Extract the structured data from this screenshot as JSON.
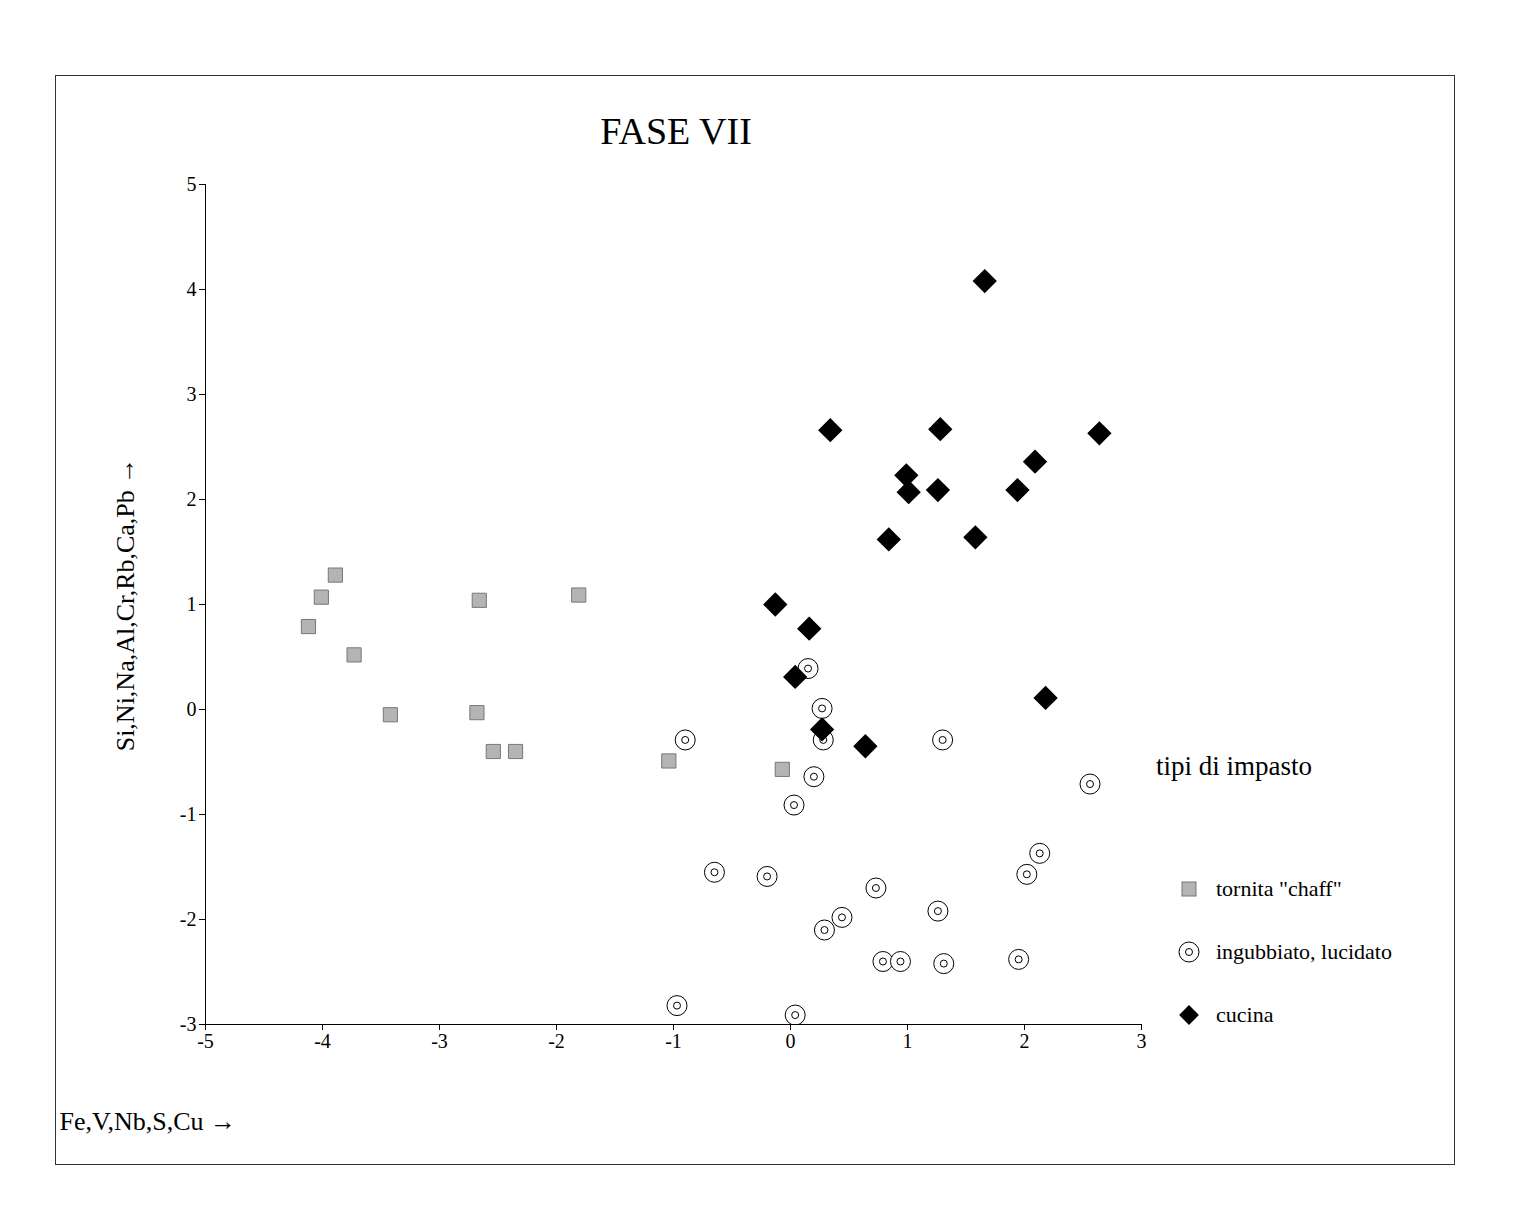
{
  "chart_data": {
    "type": "scatter",
    "title": "FASE VII",
    "x_label": "Fe,V,Nb,S,Cu",
    "y_label": "Si,Ni,Na,Al,Cr,Rb,Ca,Pb",
    "legend_title": "tipi di impasto",
    "xlim": [
      -5,
      3
    ],
    "xticks": [
      -5,
      -4,
      -3,
      -2,
      -1,
      0,
      1,
      2,
      3
    ],
    "ylim": [
      -3,
      5
    ],
    "yticks": [
      -3,
      -2,
      -1,
      0,
      1,
      2,
      3,
      4,
      5
    ],
    "legend": "right",
    "series": [
      {
        "name": "tornita \"chaff\"",
        "color": "#b4b4b4",
        "marker": "square",
        "x": [
          -3.89,
          -4.01,
          -4.12,
          -3.73,
          -3.42,
          -2.66,
          -2.68,
          -2.54,
          -2.35,
          -1.81,
          -1.04,
          -0.07
        ],
        "y": [
          1.28,
          1.07,
          0.79,
          0.52,
          -0.05,
          1.04,
          -0.03,
          -0.4,
          -0.4,
          1.09,
          -0.49,
          -0.57
        ]
      },
      {
        "name": "ingubbiato, lucidato",
        "color": "#000000",
        "marker": "circle",
        "x": [
          0.15,
          0.27,
          -0.9,
          0.28,
          1.3,
          0.2,
          0.03,
          2.56,
          -0.65,
          -0.2,
          0.73,
          2.13,
          2.02,
          1.26,
          0.44,
          0.29,
          0.79,
          0.94,
          1.31,
          1.95,
          -0.97,
          0.04
        ],
        "y": [
          0.39,
          0.01,
          -0.29,
          -0.29,
          -0.29,
          -0.64,
          -0.91,
          -0.71,
          -1.55,
          -1.59,
          -1.7,
          -1.37,
          -1.57,
          -1.92,
          -1.98,
          -2.1,
          -2.4,
          -2.4,
          -2.42,
          -2.38,
          -2.82,
          -2.91
        ]
      },
      {
        "name": "cucina",
        "color": "#000000",
        "marker": "diamond",
        "x": [
          1.66,
          0.34,
          1.28,
          2.64,
          0.99,
          2.09,
          1.01,
          1.26,
          1.94,
          0.84,
          1.58,
          -0.13,
          0.16,
          0.04,
          2.18,
          0.27,
          0.64
        ],
        "y": [
          4.08,
          2.66,
          2.67,
          2.63,
          2.23,
          2.36,
          2.07,
          2.09,
          2.09,
          1.62,
          1.64,
          1.0,
          0.77,
          0.31,
          0.11,
          -0.19,
          -0.35
        ]
      }
    ]
  }
}
